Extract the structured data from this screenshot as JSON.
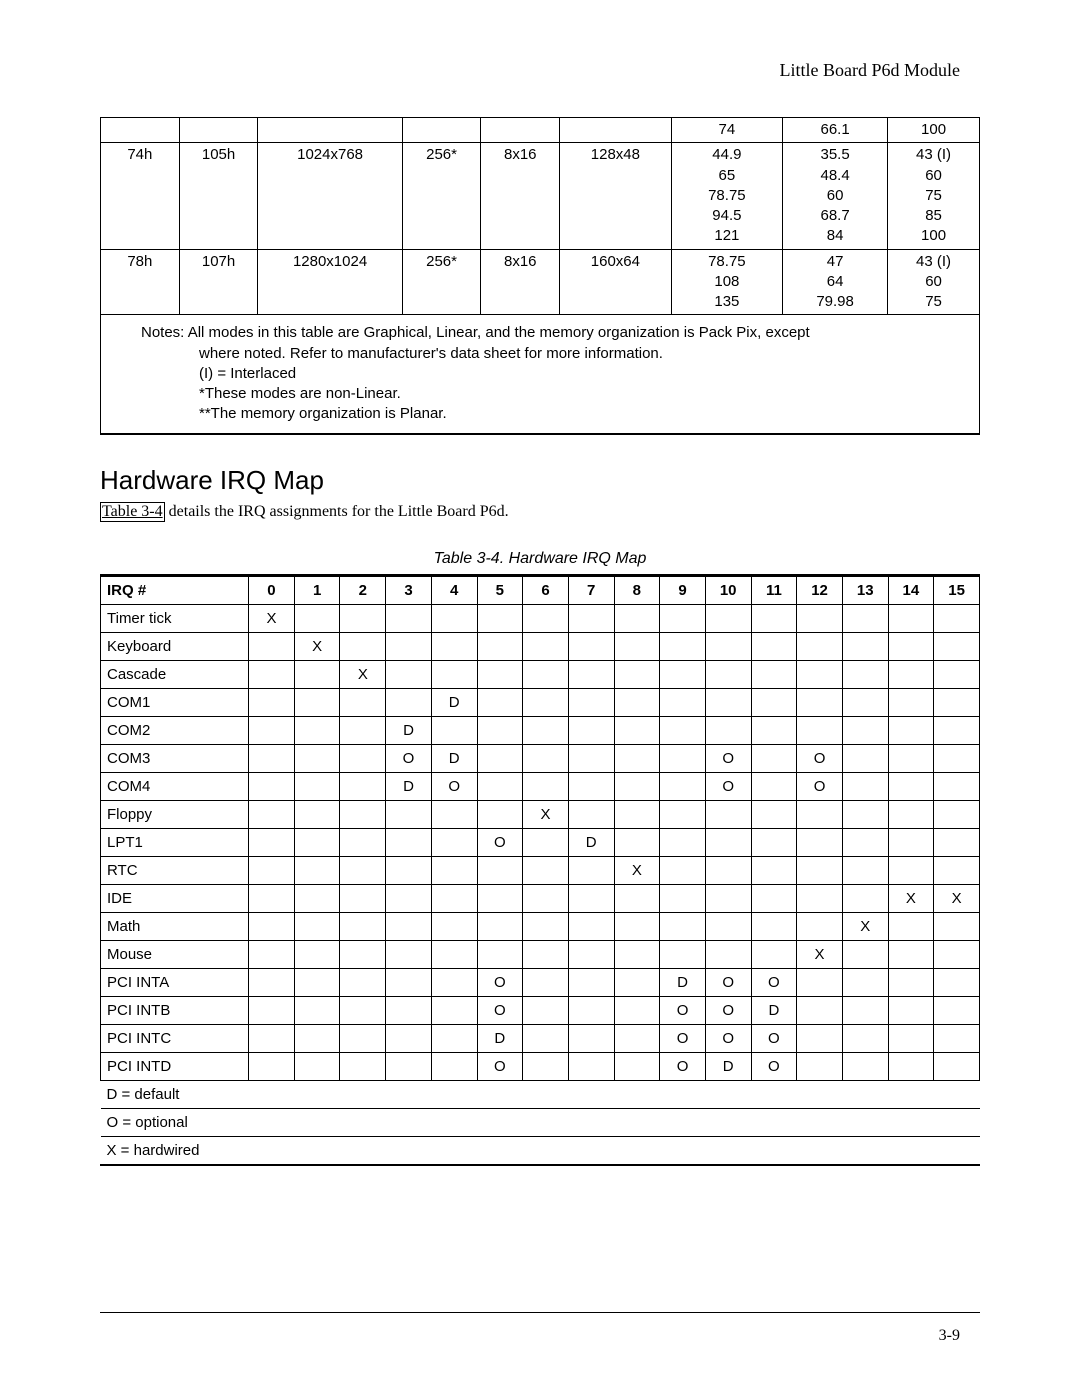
{
  "header": {
    "title": "Little Board P6d Module"
  },
  "video_table": {
    "row0": {
      "c6": "74",
      "c7": "66.1",
      "c8": "100"
    },
    "row1": {
      "c0": "74h",
      "c1": "105h",
      "c2": "1024x768",
      "c3": "256*",
      "c4": "8x16",
      "c5": "128x48",
      "c6": "44.9\n65\n78.75\n94.5\n121",
      "c7": "35.5\n48.4\n60\n68.7\n84",
      "c8": "43 (I)\n60\n75\n85\n100"
    },
    "row2": {
      "c0": "78h",
      "c1": "107h",
      "c2": "1280x1024",
      "c3": "256*",
      "c4": "8x16",
      "c5": "160x64",
      "c6": "78.75\n108\n135",
      "c7": "47\n64\n79.98",
      "c8": "43 (I)\n60\n75"
    },
    "notes_main": "Notes:  All modes in this table are Graphical, Linear, and the memory organization is Pack Pix, except",
    "notes_l2": "where noted.  Refer to manufacturer's data sheet for more information.",
    "notes_l3": "(I) = Interlaced",
    "notes_l4": "*These modes are non-Linear.",
    "notes_l5": "**The memory organization is Planar."
  },
  "section": {
    "title": "Hardware IRQ Map",
    "link_text": "Table 3-4",
    "rest_text": " details the IRQ assignments for the Little Board P6d.",
    "caption": "Table 3-4.  Hardware IRQ Map"
  },
  "irq": {
    "header": {
      "label": "IRQ #",
      "n0": "0",
      "n1": "1",
      "n2": "2",
      "n3": "3",
      "n4": "4",
      "n5": "5",
      "n6": "6",
      "n7": "7",
      "n8": "8",
      "n9": "9",
      "n10": "10",
      "n11": "11",
      "n12": "12",
      "n13": "13",
      "n14": "14",
      "n15": "15"
    },
    "rows": [
      {
        "label": "Timer tick",
        "v": [
          "X",
          "",
          "",
          "",
          "",
          "",
          "",
          "",
          "",
          "",
          "",
          "",
          "",
          "",
          "",
          ""
        ]
      },
      {
        "label": "Keyboard",
        "v": [
          "",
          "X",
          "",
          "",
          "",
          "",
          "",
          "",
          "",
          "",
          "",
          "",
          "",
          "",
          "",
          ""
        ]
      },
      {
        "label": "Cascade",
        "v": [
          "",
          "",
          "X",
          "",
          "",
          "",
          "",
          "",
          "",
          "",
          "",
          "",
          "",
          "",
          "",
          ""
        ]
      },
      {
        "label": "COM1",
        "v": [
          "",
          "",
          "",
          "",
          "D",
          "",
          "",
          "",
          "",
          "",
          "",
          "",
          "",
          "",
          "",
          ""
        ]
      },
      {
        "label": "COM2",
        "v": [
          "",
          "",
          "",
          "D",
          "",
          "",
          "",
          "",
          "",
          "",
          "",
          "",
          "",
          "",
          "",
          ""
        ]
      },
      {
        "label": "COM3",
        "v": [
          "",
          "",
          "",
          "O",
          "D",
          "",
          "",
          "",
          "",
          "",
          "O",
          "",
          "O",
          "",
          "",
          ""
        ]
      },
      {
        "label": "COM4",
        "v": [
          "",
          "",
          "",
          "D",
          "O",
          "",
          "",
          "",
          "",
          "",
          "O",
          "",
          "O",
          "",
          "",
          ""
        ]
      },
      {
        "label": "Floppy",
        "v": [
          "",
          "",
          "",
          "",
          "",
          "",
          "X",
          "",
          "",
          "",
          "",
          "",
          "",
          "",
          "",
          ""
        ]
      },
      {
        "label": "LPT1",
        "v": [
          "",
          "",
          "",
          "",
          "",
          "O",
          "",
          "D",
          "",
          "",
          "",
          "",
          "",
          "",
          "",
          ""
        ]
      },
      {
        "label": "RTC",
        "v": [
          "",
          "",
          "",
          "",
          "",
          "",
          "",
          "",
          "X",
          "",
          "",
          "",
          "",
          "",
          "",
          ""
        ]
      },
      {
        "label": "IDE",
        "v": [
          "",
          "",
          "",
          "",
          "",
          "",
          "",
          "",
          "",
          "",
          "",
          "",
          "",
          "",
          "X",
          "X"
        ]
      },
      {
        "label": "Math",
        "v": [
          "",
          "",
          "",
          "",
          "",
          "",
          "",
          "",
          "",
          "",
          "",
          "",
          "",
          "X",
          "",
          ""
        ]
      },
      {
        "label": "Mouse",
        "v": [
          "",
          "",
          "",
          "",
          "",
          "",
          "",
          "",
          "",
          "",
          "",
          "",
          "X",
          "",
          "",
          ""
        ]
      },
      {
        "label": "PCI INTA",
        "v": [
          "",
          "",
          "",
          "",
          "",
          "O",
          "",
          "",
          "",
          "D",
          "O",
          "O",
          "",
          "",
          "",
          ""
        ]
      },
      {
        "label": "PCI INTB",
        "v": [
          "",
          "",
          "",
          "",
          "",
          "O",
          "",
          "",
          "",
          "O",
          "O",
          "D",
          "",
          "",
          "",
          ""
        ]
      },
      {
        "label": "PCI INTC",
        "v": [
          "",
          "",
          "",
          "",
          "",
          "D",
          "",
          "",
          "",
          "O",
          "O",
          "O",
          "",
          "",
          "",
          ""
        ]
      },
      {
        "label": "PCI INTD",
        "v": [
          "",
          "",
          "",
          "",
          "",
          "O",
          "",
          "",
          "",
          "O",
          "D",
          "O",
          "",
          "",
          "",
          ""
        ]
      }
    ],
    "legend": {
      "d": "D = default",
      "o": "O = optional",
      "x": "X = hardwired"
    }
  },
  "footer": {
    "page": "3-9"
  }
}
